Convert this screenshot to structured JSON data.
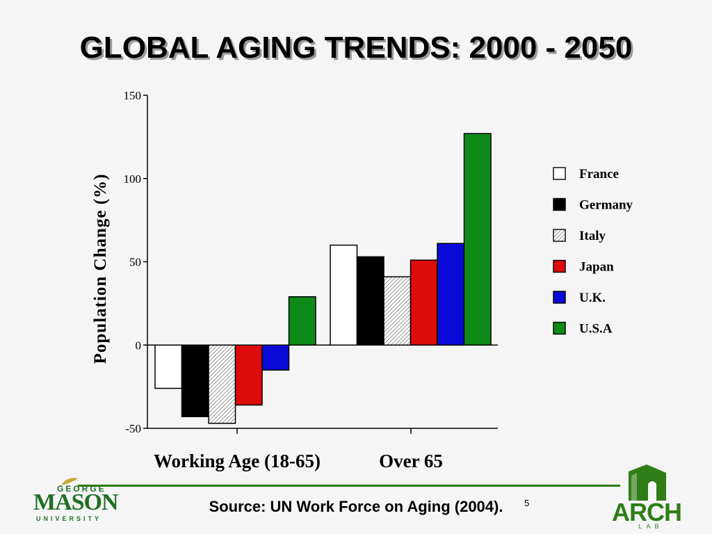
{
  "slide": {
    "title": "GLOBAL AGING TRENDS:  2000 - 2050",
    "source": "Source: UN Work Force on Aging (2004).",
    "page_number": "5"
  },
  "logos": {
    "gmu": {
      "george": "GEORGE",
      "mason": "MASON",
      "university": "UNIVERSITY"
    },
    "arch": {
      "word": "ARCH",
      "lab": "LAB"
    }
  },
  "chart_data": {
    "type": "bar",
    "title": "",
    "xlabel": "",
    "ylabel": "Population Change (%)",
    "ylim": [
      -50,
      150
    ],
    "yticks": [
      150,
      100,
      50,
      0,
      -50
    ],
    "categories": [
      "Working Age (18-65)",
      "Over 65"
    ],
    "series": [
      {
        "name": "France",
        "values": [
          -26,
          60
        ],
        "color": "#ffffff",
        "pattern": "none"
      },
      {
        "name": "Germany",
        "values": [
          -43,
          53
        ],
        "color": "#000000",
        "pattern": "none"
      },
      {
        "name": "Italy",
        "values": [
          -47,
          41
        ],
        "color": "#ffffff",
        "pattern": "hatch"
      },
      {
        "name": "Japan",
        "values": [
          -36,
          51
        ],
        "color": "#dd0b0b",
        "pattern": "none"
      },
      {
        "name": "U.K.",
        "values": [
          -15,
          61
        ],
        "color": "#0a0ad8",
        "pattern": "none"
      },
      {
        "name": "U.S.A",
        "values": [
          29,
          127
        ],
        "color": "#0e8a18",
        "pattern": "none"
      }
    ],
    "legend_position": "right",
    "grid": false
  }
}
